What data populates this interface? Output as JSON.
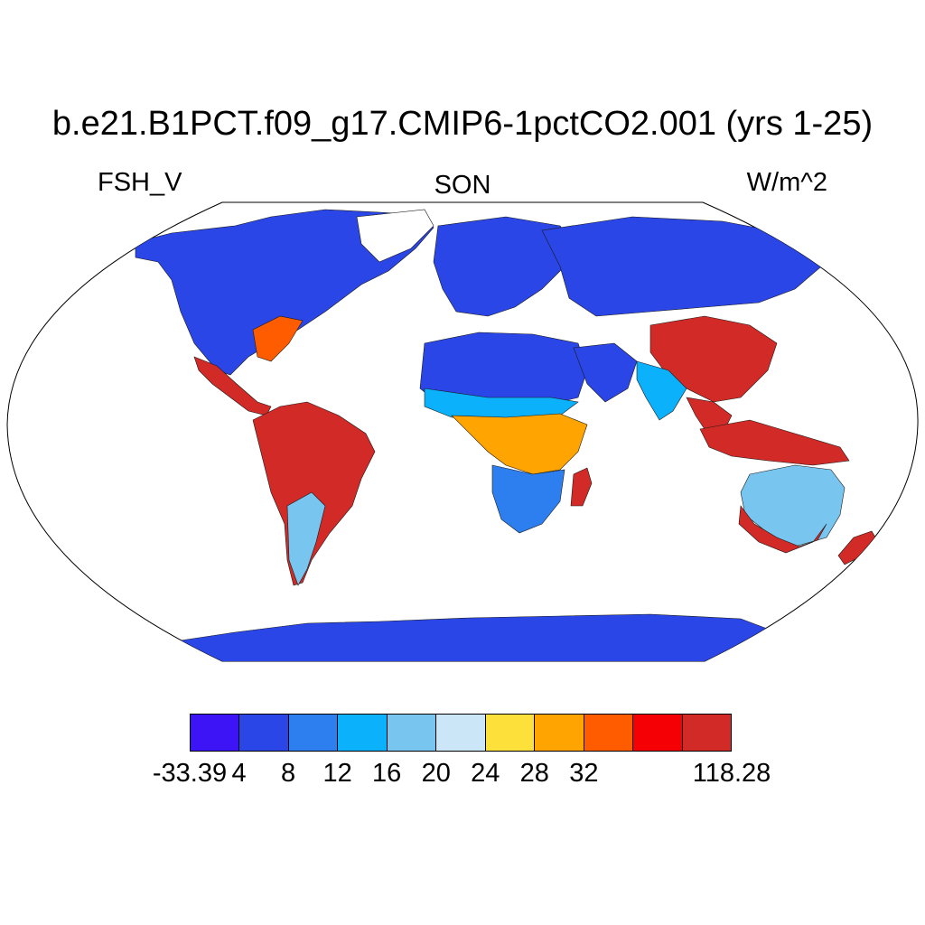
{
  "title": "b.e21.B1PCT.f09_g17.CMIP6-1pctCO2.001 (yrs 1-25)",
  "left_label": "FSH_V",
  "center_label": "SON",
  "right_label": "W/m^2",
  "colorbar": {
    "colors": [
      "#3d14f5",
      "#2a46e6",
      "#2d7eee",
      "#0bb1fb",
      "#78c5ef",
      "#cbe6f7",
      "#fde03a",
      "#ffa400",
      "#ff5c00",
      "#f50004",
      "#d22a26"
    ],
    "labels": [
      "-33.39",
      "4",
      "8",
      "12",
      "16",
      "20",
      "24",
      "28",
      "32",
      "118.28"
    ],
    "label_boundaries": [
      0,
      1,
      2,
      3,
      4,
      5,
      6,
      7,
      8,
      11
    ]
  },
  "map": {
    "projection": "Robinson",
    "ocean_color": "#ffffff",
    "regions": [
      {
        "name": "North America",
        "color": "#2a46e6"
      },
      {
        "name": "Eastern United States",
        "color": "#ff5c00"
      },
      {
        "name": "Central America",
        "color": "#d22a26"
      },
      {
        "name": "South America",
        "color": "#d22a26"
      },
      {
        "name": "Southern South America",
        "color": "#78c5ef"
      },
      {
        "name": "Greenland",
        "color": "#ffffff"
      },
      {
        "name": "Europe",
        "color": "#2a46e6"
      },
      {
        "name": "Northern Africa",
        "color": "#2a46e6"
      },
      {
        "name": "Sahel",
        "color": "#0bb1fb"
      },
      {
        "name": "Central Africa",
        "color": "#ffa400"
      },
      {
        "name": "Southern Africa",
        "color": "#2d7eee"
      },
      {
        "name": "Madagascar",
        "color": "#d22a26"
      },
      {
        "name": "Arabian Peninsula",
        "color": "#2a46e6"
      },
      {
        "name": "Russia",
        "color": "#2a46e6"
      },
      {
        "name": "China",
        "color": "#d22a26"
      },
      {
        "name": "India",
        "color": "#0bb1fb"
      },
      {
        "name": "Southeast Asia",
        "color": "#d22a26"
      },
      {
        "name": "Indonesia",
        "color": "#d22a26"
      },
      {
        "name": "Australia",
        "color": "#78c5ef"
      },
      {
        "name": "Australian Coast",
        "color": "#d22a26"
      },
      {
        "name": "New Zealand",
        "color": "#d22a26"
      },
      {
        "name": "Antarctica",
        "color": "#2a46e6"
      }
    ]
  }
}
